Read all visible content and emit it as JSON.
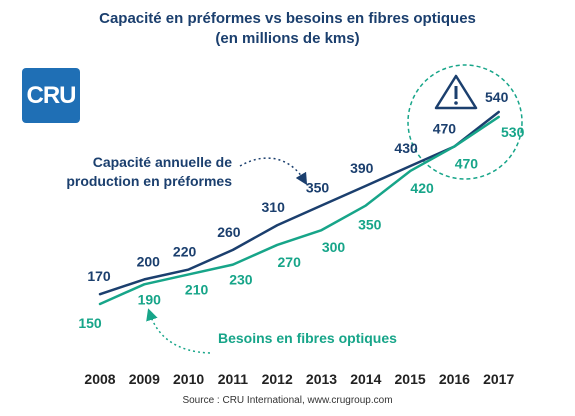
{
  "header": {
    "title": "Capacité en préformes vs besoins en fibres optiques",
    "subtitle": "(en millions de kms)"
  },
  "logo": {
    "text": "CRU"
  },
  "colors": {
    "capacity": "#1b3f6e",
    "demand": "#17a589",
    "logo": "#1f6fb5"
  },
  "icons": {
    "warning": "warning-triangle-icon"
  },
  "source": "Source : CRU International, www.crugroup.com",
  "chart_data": {
    "type": "line",
    "title": "Capacité en préformes vs besoins en fibres optiques",
    "subtitle": "(en millions de kms)",
    "categories": [
      "2008",
      "2009",
      "2010",
      "2011",
      "2012",
      "2013",
      "2014",
      "2015",
      "2016",
      "2017"
    ],
    "series": [
      {
        "name": "Capacité annuelle de production en préformes",
        "values": [
          170,
          200,
          220,
          260,
          310,
          350,
          390,
          430,
          470,
          540
        ],
        "color": "#1b3f6e"
      },
      {
        "name": "Besoins en fibres optiques",
        "values": [
          150,
          190,
          210,
          230,
          270,
          300,
          350,
          420,
          470,
          530
        ],
        "color": "#17a589"
      }
    ],
    "grid": false,
    "legend": "inline labels"
  }
}
